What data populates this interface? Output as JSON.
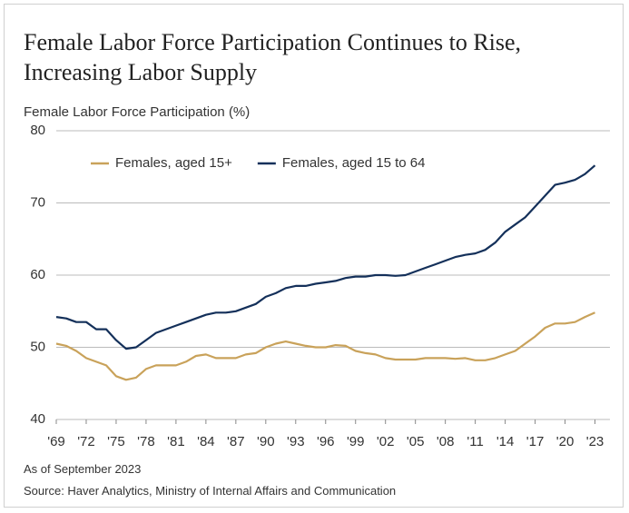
{
  "chart_data": {
    "type": "line",
    "title": "Female Labor Force Participation Continues to Rise, Increasing Labor Supply",
    "y_label": "Female Labor Force Participation (%)",
    "notes": [
      "As of September 2023",
      "Source: Haver Analytics, Ministry of Internal Affairs and Communication"
    ],
    "x": [
      1969,
      1970,
      1971,
      1972,
      1973,
      1974,
      1975,
      1976,
      1977,
      1978,
      1979,
      1980,
      1981,
      1982,
      1983,
      1984,
      1985,
      1986,
      1987,
      1988,
      1989,
      1990,
      1991,
      1992,
      1993,
      1994,
      1995,
      1996,
      1997,
      1998,
      1999,
      2000,
      2001,
      2002,
      2003,
      2004,
      2005,
      2006,
      2007,
      2008,
      2009,
      2010,
      2011,
      2012,
      2013,
      2014,
      2015,
      2016,
      2017,
      2018,
      2019,
      2020,
      2021,
      2022,
      2023
    ],
    "series": [
      {
        "name": "Females, aged 15+",
        "color": "#c9a25a",
        "values": [
          50.5,
          50.2,
          49.5,
          48.5,
          48,
          47.5,
          46,
          45.5,
          45.8,
          47,
          47.5,
          47.5,
          47.5,
          48,
          48.8,
          49,
          48.5,
          48.5,
          48.5,
          49,
          49.2,
          50,
          50.5,
          50.8,
          50.5,
          50.2,
          50,
          50,
          50.3,
          50.2,
          49.5,
          49.2,
          49,
          48.5,
          48.3,
          48.3,
          48.3,
          48.5,
          48.5,
          48.5,
          48.4,
          48.5,
          48.2,
          48.2,
          48.5,
          49,
          49.5,
          50.5,
          51.5,
          52.7,
          53.3,
          53.3,
          53.5,
          54.2,
          54.8
        ]
      },
      {
        "name": "Females, aged 15 to 64",
        "color": "#14305a",
        "values": [
          54.2,
          54,
          53.5,
          53.5,
          52.5,
          52.5,
          51,
          49.8,
          50,
          51,
          52,
          52.5,
          53,
          53.5,
          54,
          54.5,
          54.8,
          54.8,
          55,
          55.5,
          56,
          57,
          57.5,
          58.2,
          58.5,
          58.5,
          58.8,
          59,
          59.2,
          59.6,
          59.8,
          59.8,
          60,
          60,
          59.9,
          60,
          60.5,
          61,
          61.5,
          62,
          62.5,
          62.8,
          63,
          63.5,
          64.5,
          66,
          67,
          68,
          69.5,
          71,
          72.5,
          72.8,
          73.2,
          74,
          75.2
        ]
      }
    ],
    "xlim": [
      1969,
      2024.5
    ],
    "xticks": [
      {
        "value": 1969,
        "label": "'69"
      },
      {
        "value": 1972,
        "label": "'72"
      },
      {
        "value": 1975,
        "label": "'75"
      },
      {
        "value": 1978,
        "label": "'78"
      },
      {
        "value": 1981,
        "label": "'81"
      },
      {
        "value": 1984,
        "label": "'84"
      },
      {
        "value": 1987,
        "label": "'87"
      },
      {
        "value": 1990,
        "label": "'90"
      },
      {
        "value": 1993,
        "label": "'93"
      },
      {
        "value": 1996,
        "label": "'96"
      },
      {
        "value": 1999,
        "label": "'99"
      },
      {
        "value": 2002,
        "label": "'02"
      },
      {
        "value": 2005,
        "label": "'05"
      },
      {
        "value": 2008,
        "label": "'08"
      },
      {
        "value": 2011,
        "label": "'11"
      },
      {
        "value": 2014,
        "label": "'14"
      },
      {
        "value": 2017,
        "label": "'17"
      },
      {
        "value": 2020,
        "label": "'20"
      },
      {
        "value": 2023,
        "label": "'23"
      }
    ],
    "ylim": [
      40,
      80
    ],
    "yticks": [
      40,
      50,
      60,
      70,
      80
    ],
    "grid": true,
    "legend": "top"
  }
}
